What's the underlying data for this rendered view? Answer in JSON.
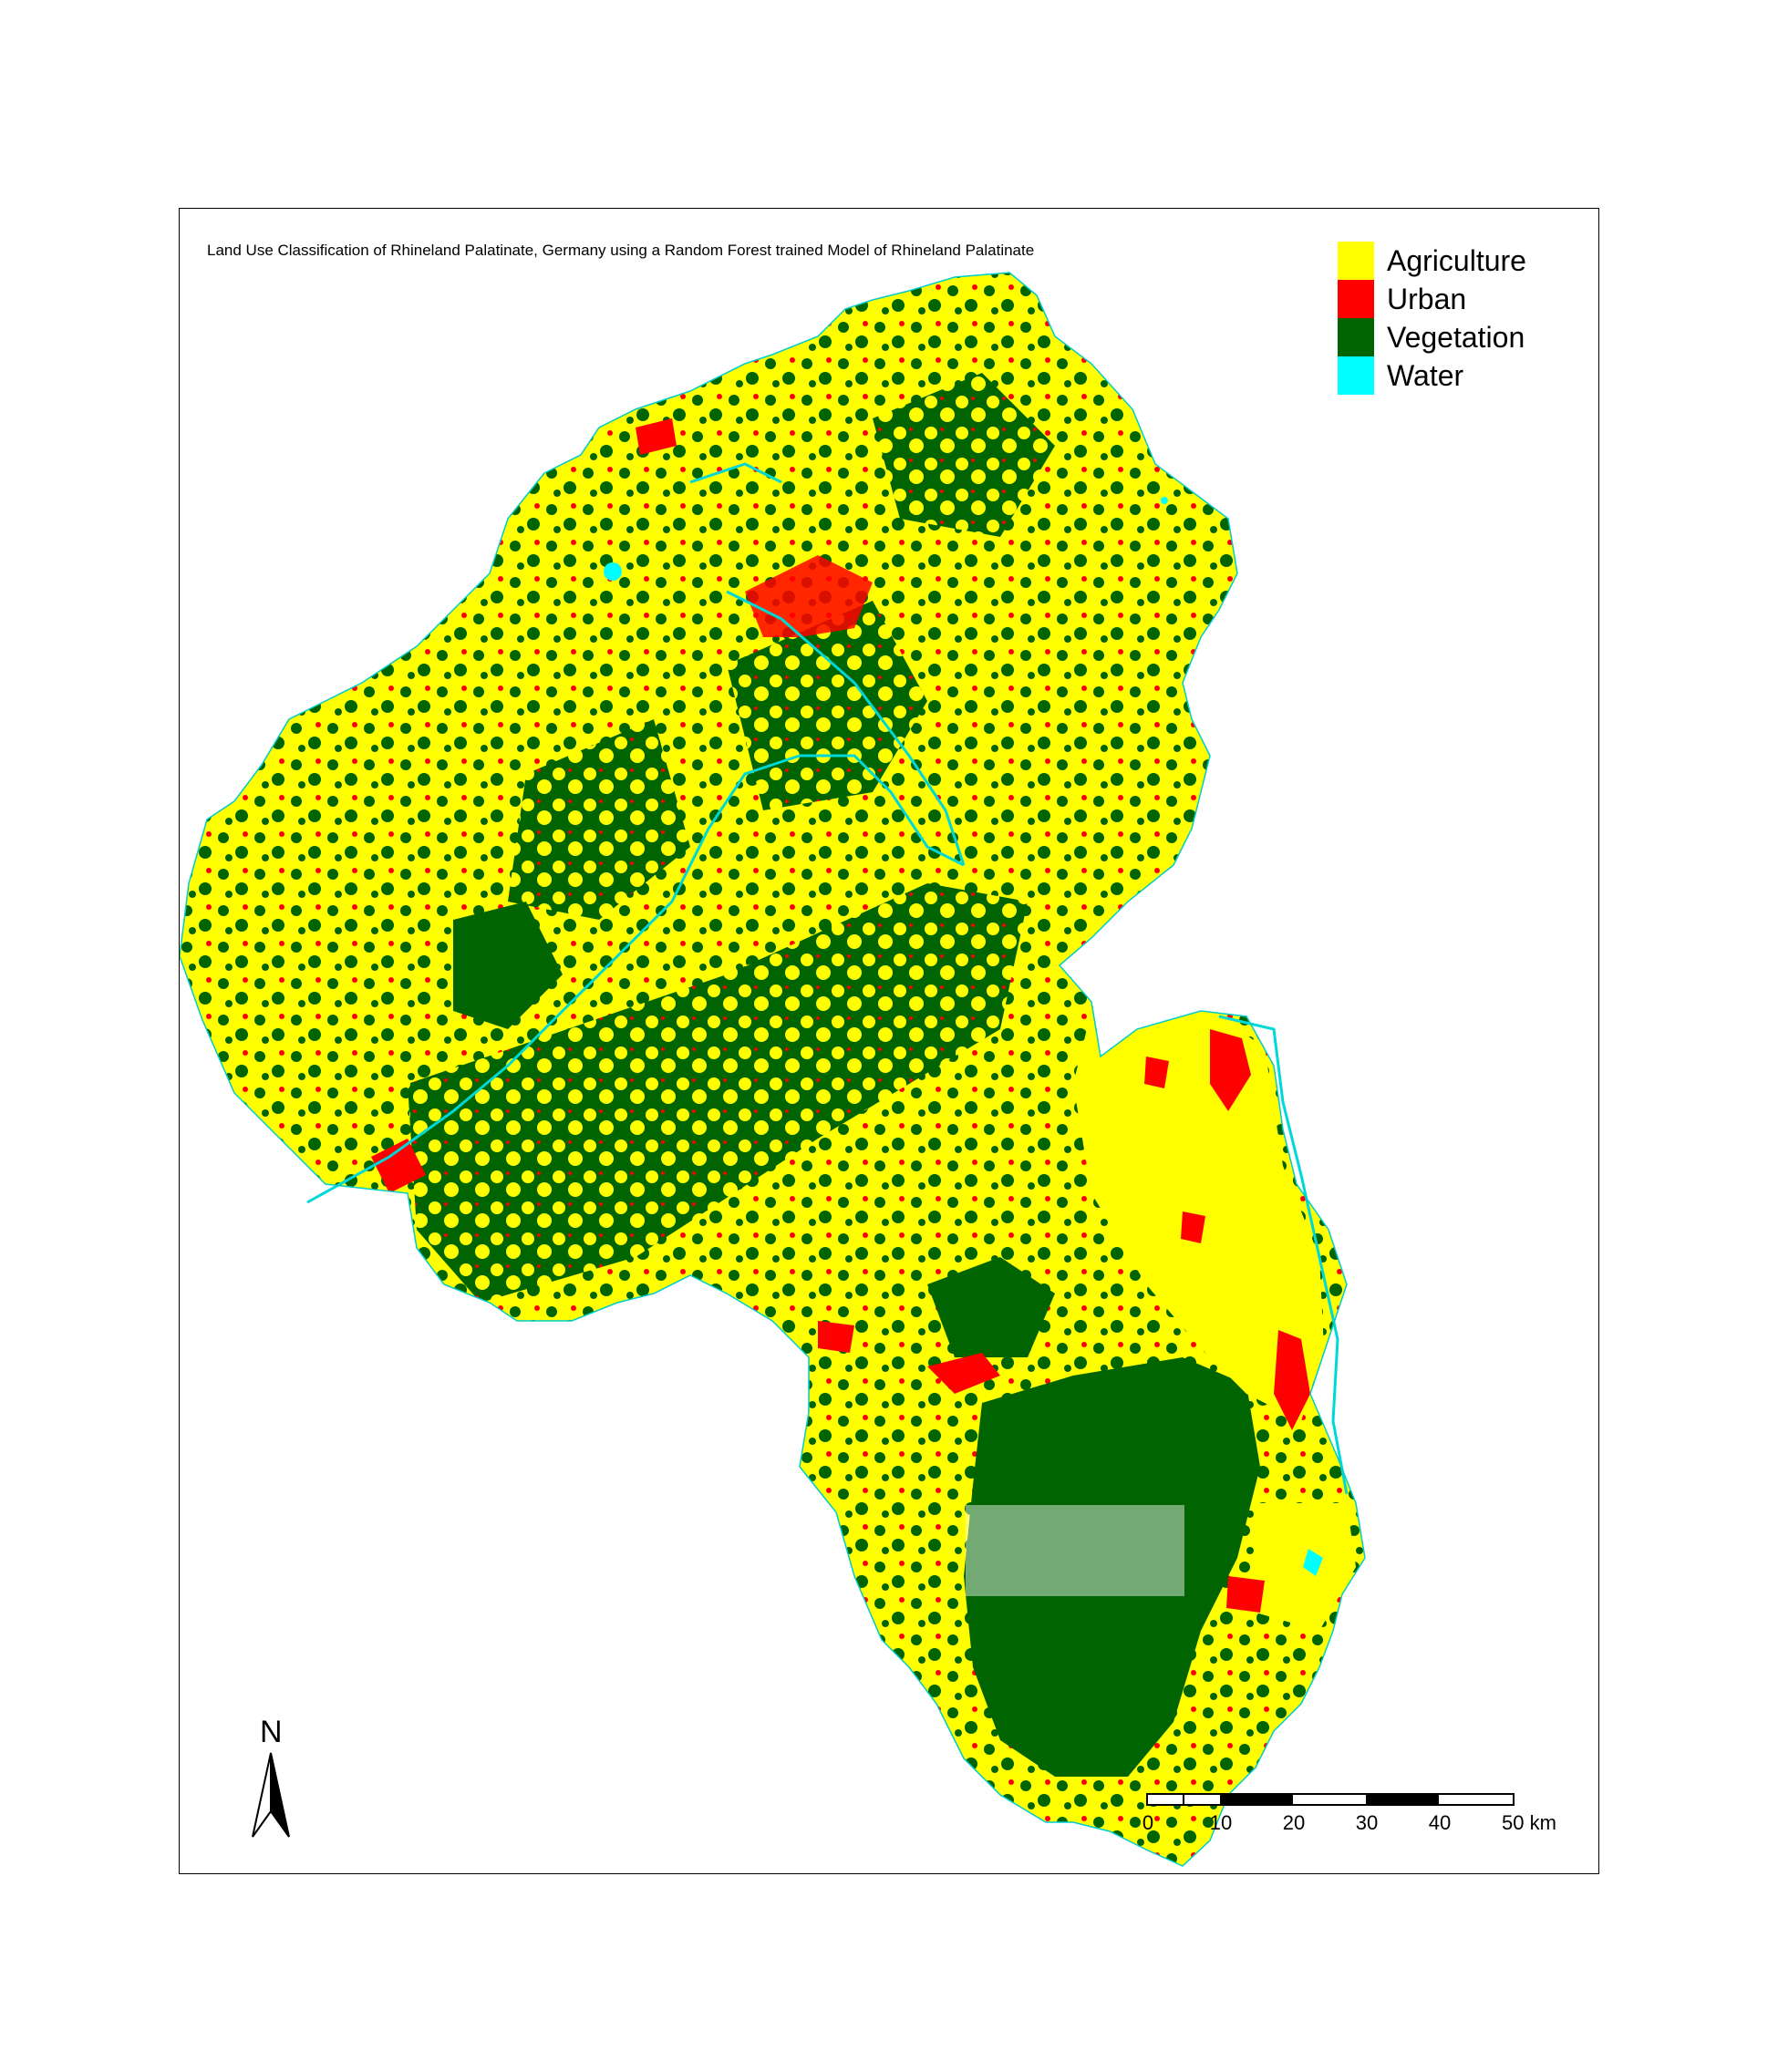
{
  "title": "Land Use Classification of Rhineland Palatinate, Germany using a Random Forest trained Model of Rhineland Palatinate",
  "legend": {
    "items": [
      {
        "label": "Agriculture",
        "color": "#ffff00"
      },
      {
        "label": "Urban",
        "color": "#ff0000"
      },
      {
        "label": "Vegetation",
        "color": "#006400"
      },
      {
        "label": "Water",
        "color": "#00ffff"
      }
    ]
  },
  "north_arrow": {
    "label": "N"
  },
  "scale_bar": {
    "ticks": [
      "0",
      "10",
      "20",
      "30",
      "40",
      "50 km"
    ]
  },
  "colors": {
    "agriculture": "#ffff00",
    "urban": "#ff0000",
    "vegetation": "#006400",
    "water": "#00ffff",
    "frame": "#000000"
  }
}
